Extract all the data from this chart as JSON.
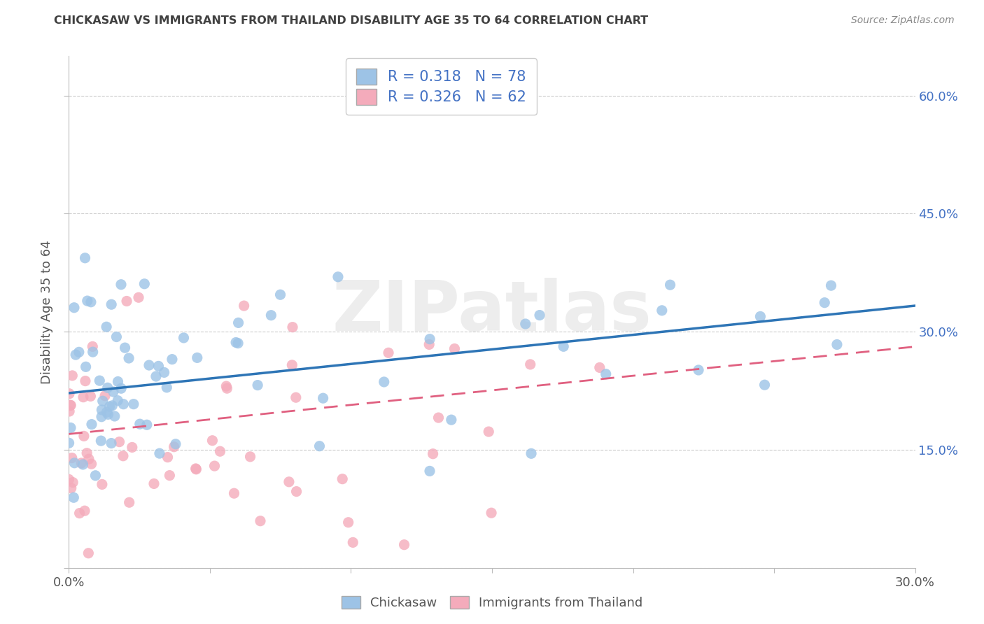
{
  "title": "CHICKASAW VS IMMIGRANTS FROM THAILAND DISABILITY AGE 35 TO 64 CORRELATION CHART",
  "source": "Source: ZipAtlas.com",
  "ylabel": "Disability Age 35 to 64",
  "xlim": [
    0.0,
    0.3
  ],
  "ylim": [
    0.0,
    0.65
  ],
  "R_blue": 0.318,
  "N_blue": 78,
  "R_pink": 0.326,
  "N_pink": 62,
  "blue_color": "#9DC3E6",
  "pink_color": "#F4ABBB",
  "blue_line_color": "#2E75B6",
  "pink_line_color": "#E06080",
  "blue_line_intercept": 0.222,
  "blue_line_slope": 0.37,
  "pink_line_intercept": 0.17,
  "pink_line_slope": 0.37,
  "legend_label_blue": "Chickasaw",
  "legend_label_pink": "Immigrants from Thailand",
  "watermark": "ZIPatlas",
  "background_color": "#FFFFFF",
  "grid_color": "#CCCCCC",
  "title_color": "#404040",
  "axis_label_color": "#555555",
  "right_tick_color": "#4472C4",
  "ytick_vals": [
    0.15,
    0.3,
    0.45,
    0.6
  ],
  "yticklabels_right": [
    "15.0%",
    "30.0%",
    "45.0%",
    "60.0%"
  ],
  "xtick_vals": [
    0.0,
    0.05,
    0.1,
    0.15,
    0.2,
    0.25,
    0.3
  ]
}
